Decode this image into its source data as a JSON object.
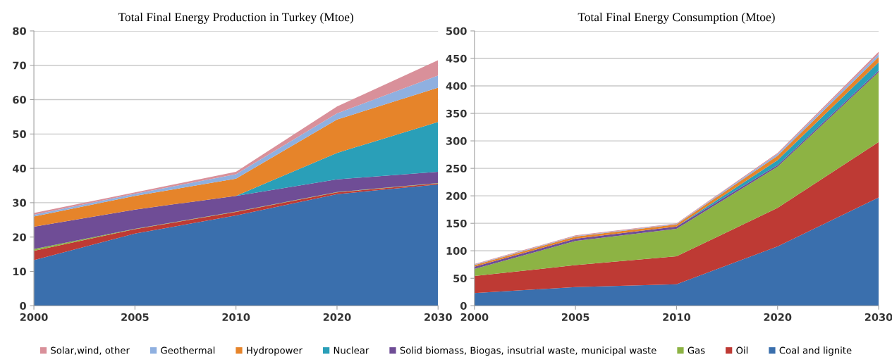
{
  "chart_data": [
    {
      "type": "area",
      "stacked": true,
      "title": "Total Final Energy Production in Turkey (Mtoe)",
      "categories": [
        "2000",
        "2005",
        "2010",
        "2020",
        "2030"
      ],
      "ylim": [
        0,
        80
      ],
      "yticks": [
        0,
        10,
        20,
        30,
        40,
        50,
        60,
        70,
        80
      ],
      "grid": "y",
      "series": [
        {
          "color": "#3a6fad",
          "values": [
            13.3,
            21,
            26.3,
            32.5,
            35.3
          ]
        },
        {
          "color": "#be3a34",
          "values": [
            2.7,
            1.3,
            1.0,
            0.5,
            0.3
          ]
        },
        {
          "color": "#8db344",
          "values": [
            0.5,
            0.1,
            0.1,
            0.1,
            0.1
          ]
        },
        {
          "color": "#6f4d96",
          "values": [
            6.5,
            5.6,
            4.6,
            3.7,
            3.3
          ]
        },
        {
          "color": "#2a9fb8",
          "values": [
            0,
            0,
            0,
            7.7,
            14.5
          ]
        },
        {
          "color": "#e6842a",
          "values": [
            3,
            4,
            5,
            9.7,
            10
          ]
        },
        {
          "color": "#8fb0e0",
          "values": [
            0.5,
            0.6,
            1.3,
            1.8,
            3.5
          ]
        },
        {
          "color": "#d9909a",
          "values": [
            0.5,
            0.4,
            0.7,
            2,
            4.5
          ]
        }
      ]
    },
    {
      "type": "area",
      "stacked": true,
      "title": "Total Final Energy Consumption (Mtoe)",
      "categories": [
        "2000",
        "2005",
        "2010",
        "2020",
        "2030"
      ],
      "ylim": [
        0,
        500
      ],
      "yticks": [
        0,
        50,
        100,
        150,
        200,
        250,
        300,
        350,
        400,
        450,
        500
      ],
      "grid": "y",
      "legend": "bottom",
      "series": [
        {
          "name": "Coal and lignite",
          "color": "#3a6fad",
          "values": [
            23,
            34,
            39,
            108,
            197
          ]
        },
        {
          "name": "Oil",
          "color": "#be3a34",
          "values": [
            31,
            40,
            51,
            70,
            101
          ]
        },
        {
          "name": "Gas",
          "color": "#8db344",
          "values": [
            13,
            44,
            50,
            75,
            127
          ]
        },
        {
          "name": "Solid biomass, Biogas, insutrial waste, municipal waste",
          "color": "#6f4d96",
          "values": [
            4,
            4,
            4,
            3,
            3
          ]
        },
        {
          "name": "Nuclear",
          "color": "#2a9fb8",
          "values": [
            0,
            0,
            0,
            9,
            15
          ]
        },
        {
          "name": "Hydropower",
          "color": "#e6842a",
          "values": [
            3,
            4,
            4,
            8,
            10
          ]
        },
        {
          "name": "Geothermal",
          "color": "#8fb0e0",
          "values": [
            1,
            1,
            1,
            3,
            5
          ]
        },
        {
          "name": "Solar,wind, other",
          "color": "#d9909a",
          "values": [
            1,
            1,
            1,
            2,
            4
          ]
        }
      ]
    }
  ]
}
